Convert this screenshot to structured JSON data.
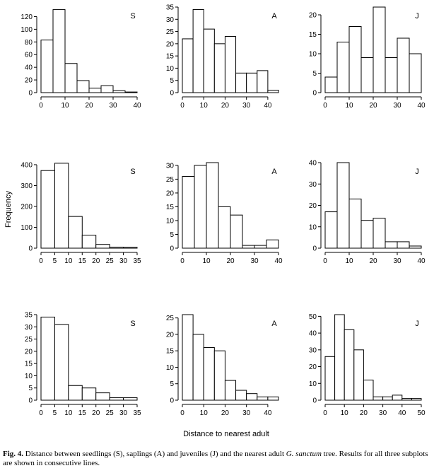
{
  "figure": {
    "ylabel": "Frequency",
    "xlabel": "Distance to nearest adult",
    "caption_label": "Fig. 4.",
    "caption_text_1": "Distance between seedlings (S), saplings (A) and juveniles (J) and the nearest adult ",
    "caption_italic": "G. sanctum",
    "caption_text_2": " tree. Results for all three subplots are shown in consecutive lines."
  },
  "colors": {
    "bar_fill": "#ffffff",
    "bar_stroke": "#000000",
    "axis": "#000000"
  },
  "chart_data": [
    {
      "type": "bar",
      "letter": "S",
      "bin_edges": [
        0,
        5,
        10,
        15,
        20,
        25,
        30,
        35,
        40
      ],
      "values": [
        83,
        131,
        46,
        19,
        7,
        11,
        3,
        1
      ],
      "xlim": [
        0,
        40
      ],
      "ylim": [
        0,
        135
      ],
      "xticks": [
        0,
        10,
        20,
        30,
        40
      ],
      "yticks": [
        0,
        20,
        40,
        60,
        80,
        100,
        120
      ]
    },
    {
      "type": "bar",
      "letter": "A",
      "bin_edges": [
        0,
        5,
        10,
        15,
        20,
        25,
        30,
        35,
        40,
        45
      ],
      "values": [
        22,
        34,
        26,
        20,
        23,
        8,
        8,
        9,
        1
      ],
      "xlim": [
        0,
        45
      ],
      "ylim": [
        0,
        35
      ],
      "xticks": [
        0,
        10,
        20,
        30,
        40
      ],
      "yticks": [
        0,
        5,
        10,
        15,
        20,
        25,
        30,
        35
      ]
    },
    {
      "type": "bar",
      "letter": "J",
      "bin_edges": [
        0,
        5,
        10,
        15,
        20,
        25,
        30,
        35,
        40
      ],
      "values": [
        4,
        13,
        17,
        9,
        22,
        9,
        14,
        10
      ],
      "xlim": [
        0,
        40
      ],
      "ylim": [
        0,
        22
      ],
      "xticks": [
        0,
        10,
        20,
        30,
        40
      ],
      "yticks": [
        0,
        5,
        10,
        15,
        20
      ]
    },
    {
      "type": "bar",
      "letter": "S",
      "bin_edges": [
        0,
        5,
        10,
        15,
        20,
        25,
        30,
        35
      ],
      "values": [
        372,
        407,
        152,
        62,
        18,
        5,
        4
      ],
      "xlim": [
        0,
        35
      ],
      "ylim": [
        0,
        410
      ],
      "xticks": [
        0,
        5,
        10,
        15,
        20,
        25,
        30,
        35
      ],
      "yticks": [
        0,
        100,
        200,
        300,
        400
      ]
    },
    {
      "type": "bar",
      "letter": "A",
      "bin_edges": [
        0,
        5,
        10,
        15,
        20,
        25,
        30,
        35,
        40
      ],
      "values": [
        26,
        30,
        31,
        15,
        12,
        1,
        1,
        3
      ],
      "xlim": [
        0,
        40
      ],
      "ylim": [
        0,
        31
      ],
      "xticks": [
        0,
        10,
        20,
        30,
        40
      ],
      "yticks": [
        0,
        5,
        10,
        15,
        20,
        25,
        30
      ]
    },
    {
      "type": "bar",
      "letter": "J",
      "bin_edges": [
        0,
        5,
        10,
        15,
        20,
        25,
        30,
        35,
        40
      ],
      "values": [
        17,
        40,
        23,
        13,
        14,
        3,
        3,
        1
      ],
      "xlim": [
        0,
        40
      ],
      "ylim": [
        0,
        40
      ],
      "xticks": [
        0,
        10,
        20,
        30,
        40
      ],
      "yticks": [
        0,
        10,
        20,
        30,
        40
      ]
    },
    {
      "type": "bar",
      "letter": "S",
      "bin_edges": [
        0,
        5,
        10,
        15,
        20,
        25,
        30,
        35
      ],
      "values": [
        34,
        31,
        6,
        5,
        3,
        1,
        1
      ],
      "xlim": [
        0,
        35
      ],
      "ylim": [
        0,
        35
      ],
      "xticks": [
        0,
        5,
        10,
        15,
        20,
        25,
        30,
        35
      ],
      "yticks": [
        0,
        5,
        10,
        15,
        20,
        25,
        30,
        35
      ]
    },
    {
      "type": "bar",
      "letter": "A",
      "bin_edges": [
        0,
        5,
        10,
        15,
        20,
        25,
        30,
        35,
        40,
        45
      ],
      "values": [
        26,
        20,
        16,
        15,
        6,
        3,
        2,
        1,
        1
      ],
      "xlim": [
        0,
        45
      ],
      "ylim": [
        0,
        26
      ],
      "xticks": [
        0,
        10,
        20,
        30,
        40
      ],
      "yticks": [
        0,
        5,
        10,
        15,
        20,
        25
      ]
    },
    {
      "type": "bar",
      "letter": "J",
      "bin_edges": [
        0,
        5,
        10,
        15,
        20,
        25,
        30,
        35,
        40,
        45,
        50
      ],
      "values": [
        26,
        51,
        42,
        30,
        12,
        2,
        2,
        3,
        1,
        1
      ],
      "xlim": [
        0,
        50
      ],
      "ylim": [
        0,
        51
      ],
      "xticks": [
        0,
        10,
        20,
        30,
        40,
        50
      ],
      "yticks": [
        0,
        10,
        20,
        30,
        40,
        50
      ]
    }
  ]
}
